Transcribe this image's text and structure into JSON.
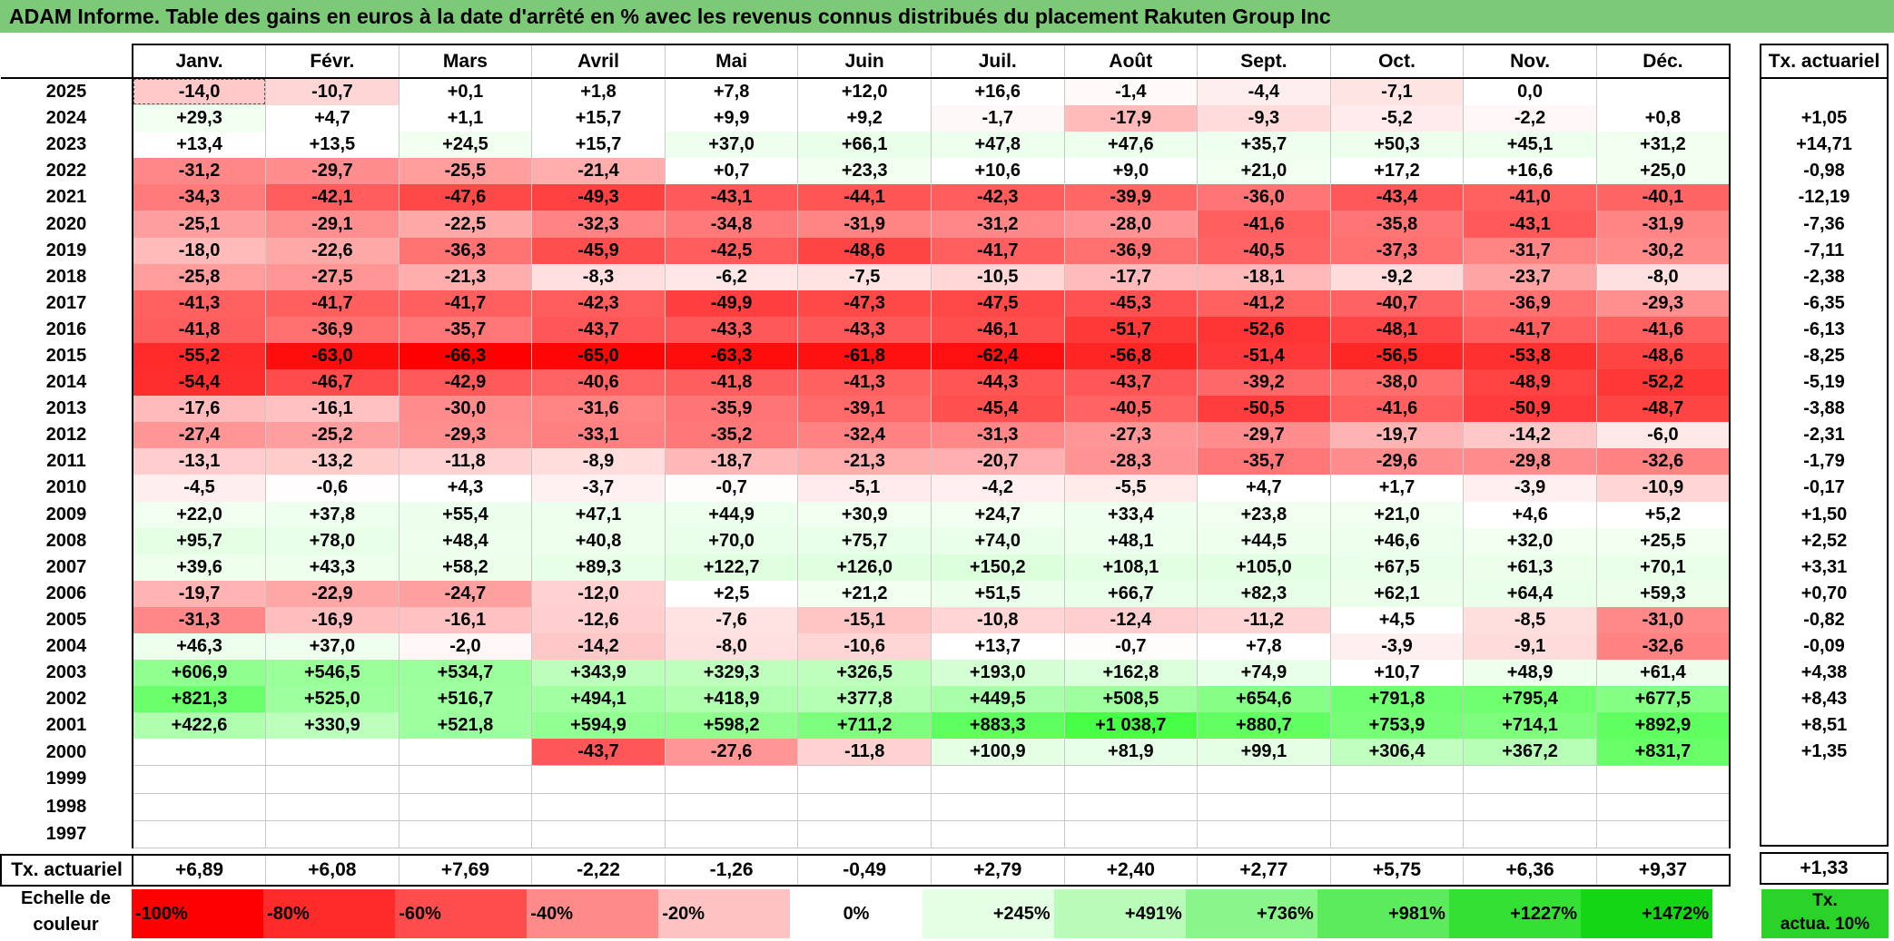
{
  "title": "ADAM Informe. Table des gains en euros à la date d'arrêté en % avec les revenus connus distribués du placement Rakuten Group Inc",
  "months": [
    "Janv.",
    "Févr.",
    "Mars",
    "Avril",
    "Mai",
    "Juin",
    "Juil.",
    "Août",
    "Sept.",
    "Oct.",
    "Nov.",
    "Déc."
  ],
  "rate_header": "Tx. actuariel",
  "rows": [
    {
      "year": "2025",
      "values": [
        "-14,0",
        "-10,7",
        "+0,1",
        "+1,8",
        "+7,8",
        "+12,0",
        "+16,6",
        "-1,4",
        "-4,4",
        "-7,1",
        "0,0",
        ""
      ],
      "rate": ""
    },
    {
      "year": "2024",
      "values": [
        "+29,3",
        "+4,7",
        "+1,1",
        "+15,7",
        "+9,9",
        "+9,2",
        "-1,7",
        "-17,9",
        "-9,3",
        "-5,2",
        "-2,2",
        "+0,8"
      ],
      "rate": "+1,05"
    },
    {
      "year": "2023",
      "values": [
        "+13,4",
        "+13,5",
        "+24,5",
        "+15,7",
        "+37,0",
        "+66,1",
        "+47,8",
        "+47,6",
        "+35,7",
        "+50,3",
        "+45,1",
        "+31,2"
      ],
      "rate": "+14,71"
    },
    {
      "year": "2022",
      "values": [
        "-31,2",
        "-29,7",
        "-25,5",
        "-21,4",
        "+0,7",
        "+23,3",
        "+10,6",
        "+9,0",
        "+21,0",
        "+17,2",
        "+16,6",
        "+25,0"
      ],
      "rate": "-0,98"
    },
    {
      "year": "2021",
      "values": [
        "-34,3",
        "-42,1",
        "-47,6",
        "-49,3",
        "-43,1",
        "-44,1",
        "-42,3",
        "-39,9",
        "-36,0",
        "-43,4",
        "-41,0",
        "-40,1"
      ],
      "rate": "-12,19"
    },
    {
      "year": "2020",
      "values": [
        "-25,1",
        "-29,1",
        "-22,5",
        "-32,3",
        "-34,8",
        "-31,9",
        "-31,2",
        "-28,0",
        "-41,6",
        "-35,8",
        "-43,1",
        "-31,9"
      ],
      "rate": "-7,36"
    },
    {
      "year": "2019",
      "values": [
        "-18,0",
        "-22,6",
        "-36,3",
        "-45,9",
        "-42,5",
        "-48,6",
        "-41,7",
        "-36,9",
        "-40,5",
        "-37,3",
        "-31,7",
        "-30,2"
      ],
      "rate": "-7,11"
    },
    {
      "year": "2018",
      "values": [
        "-25,8",
        "-27,5",
        "-21,3",
        "-8,3",
        "-6,2",
        "-7,5",
        "-10,5",
        "-17,7",
        "-18,1",
        "-9,2",
        "-23,7",
        "-8,0"
      ],
      "rate": "-2,38"
    },
    {
      "year": "2017",
      "values": [
        "-41,3",
        "-41,7",
        "-41,7",
        "-42,3",
        "-49,9",
        "-47,3",
        "-47,5",
        "-45,3",
        "-41,2",
        "-40,7",
        "-36,9",
        "-29,3"
      ],
      "rate": "-6,35"
    },
    {
      "year": "2016",
      "values": [
        "-41,8",
        "-36,9",
        "-35,7",
        "-43,7",
        "-43,3",
        "-43,3",
        "-46,1",
        "-51,7",
        "-52,6",
        "-48,1",
        "-41,7",
        "-41,6"
      ],
      "rate": "-6,13"
    },
    {
      "year": "2015",
      "values": [
        "-55,2",
        "-63,0",
        "-66,3",
        "-65,0",
        "-63,3",
        "-61,8",
        "-62,4",
        "-56,8",
        "-51,4",
        "-56,5",
        "-53,8",
        "-48,6"
      ],
      "rate": "-8,25"
    },
    {
      "year": "2014",
      "values": [
        "-54,4",
        "-46,7",
        "-42,9",
        "-40,6",
        "-41,8",
        "-41,3",
        "-44,3",
        "-43,7",
        "-39,2",
        "-38,0",
        "-48,9",
        "-52,2"
      ],
      "rate": "-5,19"
    },
    {
      "year": "2013",
      "values": [
        "-17,6",
        "-16,1",
        "-30,0",
        "-31,6",
        "-35,9",
        "-39,1",
        "-45,4",
        "-40,5",
        "-50,5",
        "-41,6",
        "-50,9",
        "-48,7"
      ],
      "rate": "-3,88"
    },
    {
      "year": "2012",
      "values": [
        "-27,4",
        "-25,2",
        "-29,3",
        "-33,1",
        "-35,2",
        "-32,4",
        "-31,3",
        "-27,3",
        "-29,7",
        "-19,7",
        "-14,2",
        "-6,0"
      ],
      "rate": "-2,31"
    },
    {
      "year": "2011",
      "values": [
        "-13,1",
        "-13,2",
        "-11,8",
        "-8,9",
        "-18,7",
        "-21,3",
        "-20,7",
        "-28,3",
        "-35,7",
        "-29,6",
        "-29,8",
        "-32,6"
      ],
      "rate": "-1,79"
    },
    {
      "year": "2010",
      "values": [
        "-4,5",
        "-0,6",
        "+4,3",
        "-3,7",
        "-0,7",
        "-5,1",
        "-4,2",
        "-5,5",
        "+4,7",
        "+1,7",
        "-3,9",
        "-10,9"
      ],
      "rate": "-0,17"
    },
    {
      "year": "2009",
      "values": [
        "+22,0",
        "+37,8",
        "+55,4",
        "+47,1",
        "+44,9",
        "+30,9",
        "+24,7",
        "+33,4",
        "+23,8",
        "+21,0",
        "+4,6",
        "+5,2"
      ],
      "rate": "+1,50"
    },
    {
      "year": "2008",
      "values": [
        "+95,7",
        "+78,0",
        "+48,4",
        "+40,8",
        "+70,0",
        "+75,7",
        "+74,0",
        "+48,1",
        "+44,5",
        "+46,6",
        "+32,0",
        "+25,5"
      ],
      "rate": "+2,52"
    },
    {
      "year": "2007",
      "values": [
        "+39,6",
        "+43,3",
        "+58,2",
        "+89,3",
        "+122,7",
        "+126,0",
        "+150,2",
        "+108,1",
        "+105,0",
        "+67,5",
        "+61,3",
        "+70,1"
      ],
      "rate": "+3,31"
    },
    {
      "year": "2006",
      "values": [
        "-19,7",
        "-22,9",
        "-24,7",
        "-12,0",
        "+2,5",
        "+21,2",
        "+51,5",
        "+66,7",
        "+82,3",
        "+62,1",
        "+64,4",
        "+59,3"
      ],
      "rate": "+0,70"
    },
    {
      "year": "2005",
      "values": [
        "-31,3",
        "-16,9",
        "-16,1",
        "-12,6",
        "-7,6",
        "-15,1",
        "-10,8",
        "-12,4",
        "-11,2",
        "+4,5",
        "-8,5",
        "-31,0"
      ],
      "rate": "-0,82"
    },
    {
      "year": "2004",
      "values": [
        "+46,3",
        "+37,0",
        "-2,0",
        "-14,2",
        "-8,0",
        "-10,6",
        "+13,7",
        "-0,7",
        "+7,8",
        "-3,9",
        "-9,1",
        "-32,6"
      ],
      "rate": "-0,09"
    },
    {
      "year": "2003",
      "values": [
        "+606,9",
        "+546,5",
        "+534,7",
        "+343,9",
        "+329,3",
        "+326,5",
        "+193,0",
        "+162,8",
        "+74,9",
        "+10,7",
        "+48,9",
        "+61,4"
      ],
      "rate": "+4,38"
    },
    {
      "year": "2002",
      "values": [
        "+821,3",
        "+525,0",
        "+516,7",
        "+494,1",
        "+418,9",
        "+377,8",
        "+449,5",
        "+508,5",
        "+654,6",
        "+791,8",
        "+795,4",
        "+677,5"
      ],
      "rate": "+8,43"
    },
    {
      "year": "2001",
      "values": [
        "+422,6",
        "+330,9",
        "+521,8",
        "+594,9",
        "+598,2",
        "+711,2",
        "+883,3",
        "+1 038,7",
        "+880,7",
        "+753,9",
        "+714,1",
        "+892,9"
      ],
      "rate": "+8,51"
    },
    {
      "year": "2000",
      "values": [
        "",
        "",
        "",
        "-43,7",
        "-27,6",
        "-11,8",
        "+100,9",
        "+81,9",
        "+99,1",
        "+306,4",
        "+367,2",
        "+831,7"
      ],
      "rate": "+1,35"
    },
    {
      "year": "1999",
      "values": [
        "",
        "",
        "",
        "",
        "",
        "",
        "",
        "",
        "",
        "",
        "",
        ""
      ],
      "rate": ""
    },
    {
      "year": "1998",
      "values": [
        "",
        "",
        "",
        "",
        "",
        "",
        "",
        "",
        "",
        "",
        "",
        ""
      ],
      "rate": ""
    },
    {
      "year": "1997",
      "values": [
        "",
        "",
        "",
        "",
        "",
        "",
        "",
        "",
        "",
        "",
        "",
        ""
      ],
      "rate": ""
    }
  ],
  "footer": {
    "label": "Tx. actuariel",
    "values": [
      "+6,89",
      "+6,08",
      "+7,69",
      "-2,22",
      "-1,26",
      "-0,49",
      "+2,79",
      "+2,40",
      "+2,77",
      "+5,75",
      "+6,36",
      "+9,37"
    ],
    "rate": "+1,33"
  },
  "legend": {
    "label_line1": "Echelle de",
    "label_line2": "couleur",
    "items": [
      {
        "label": "-100%",
        "color": "#ff0000"
      },
      {
        "label": "-80%",
        "color": "#ff2a2a"
      },
      {
        "label": "-60%",
        "color": "#ff4d4d"
      },
      {
        "label": "-40%",
        "color": "#ff8a8a"
      },
      {
        "label": "-20%",
        "color": "#ffc2c2"
      },
      {
        "label": "0%",
        "color": "#ffffff"
      },
      {
        "label": "+245%",
        "color": "#e4ffe4"
      },
      {
        "label": "+491%",
        "color": "#b9fbb9"
      },
      {
        "label": "+736%",
        "color": "#8af58a"
      },
      {
        "label": "+981%",
        "color": "#5ceb5c"
      },
      {
        "label": "+1227%",
        "color": "#33e033"
      },
      {
        "label": "+1472%",
        "color": "#14d614"
      }
    ],
    "rate_line1": "Tx.",
    "rate_line2": "actua. 10%",
    "rate_color": "#2ad22a"
  },
  "colors": {
    "title_bg": "#7cc978"
  }
}
